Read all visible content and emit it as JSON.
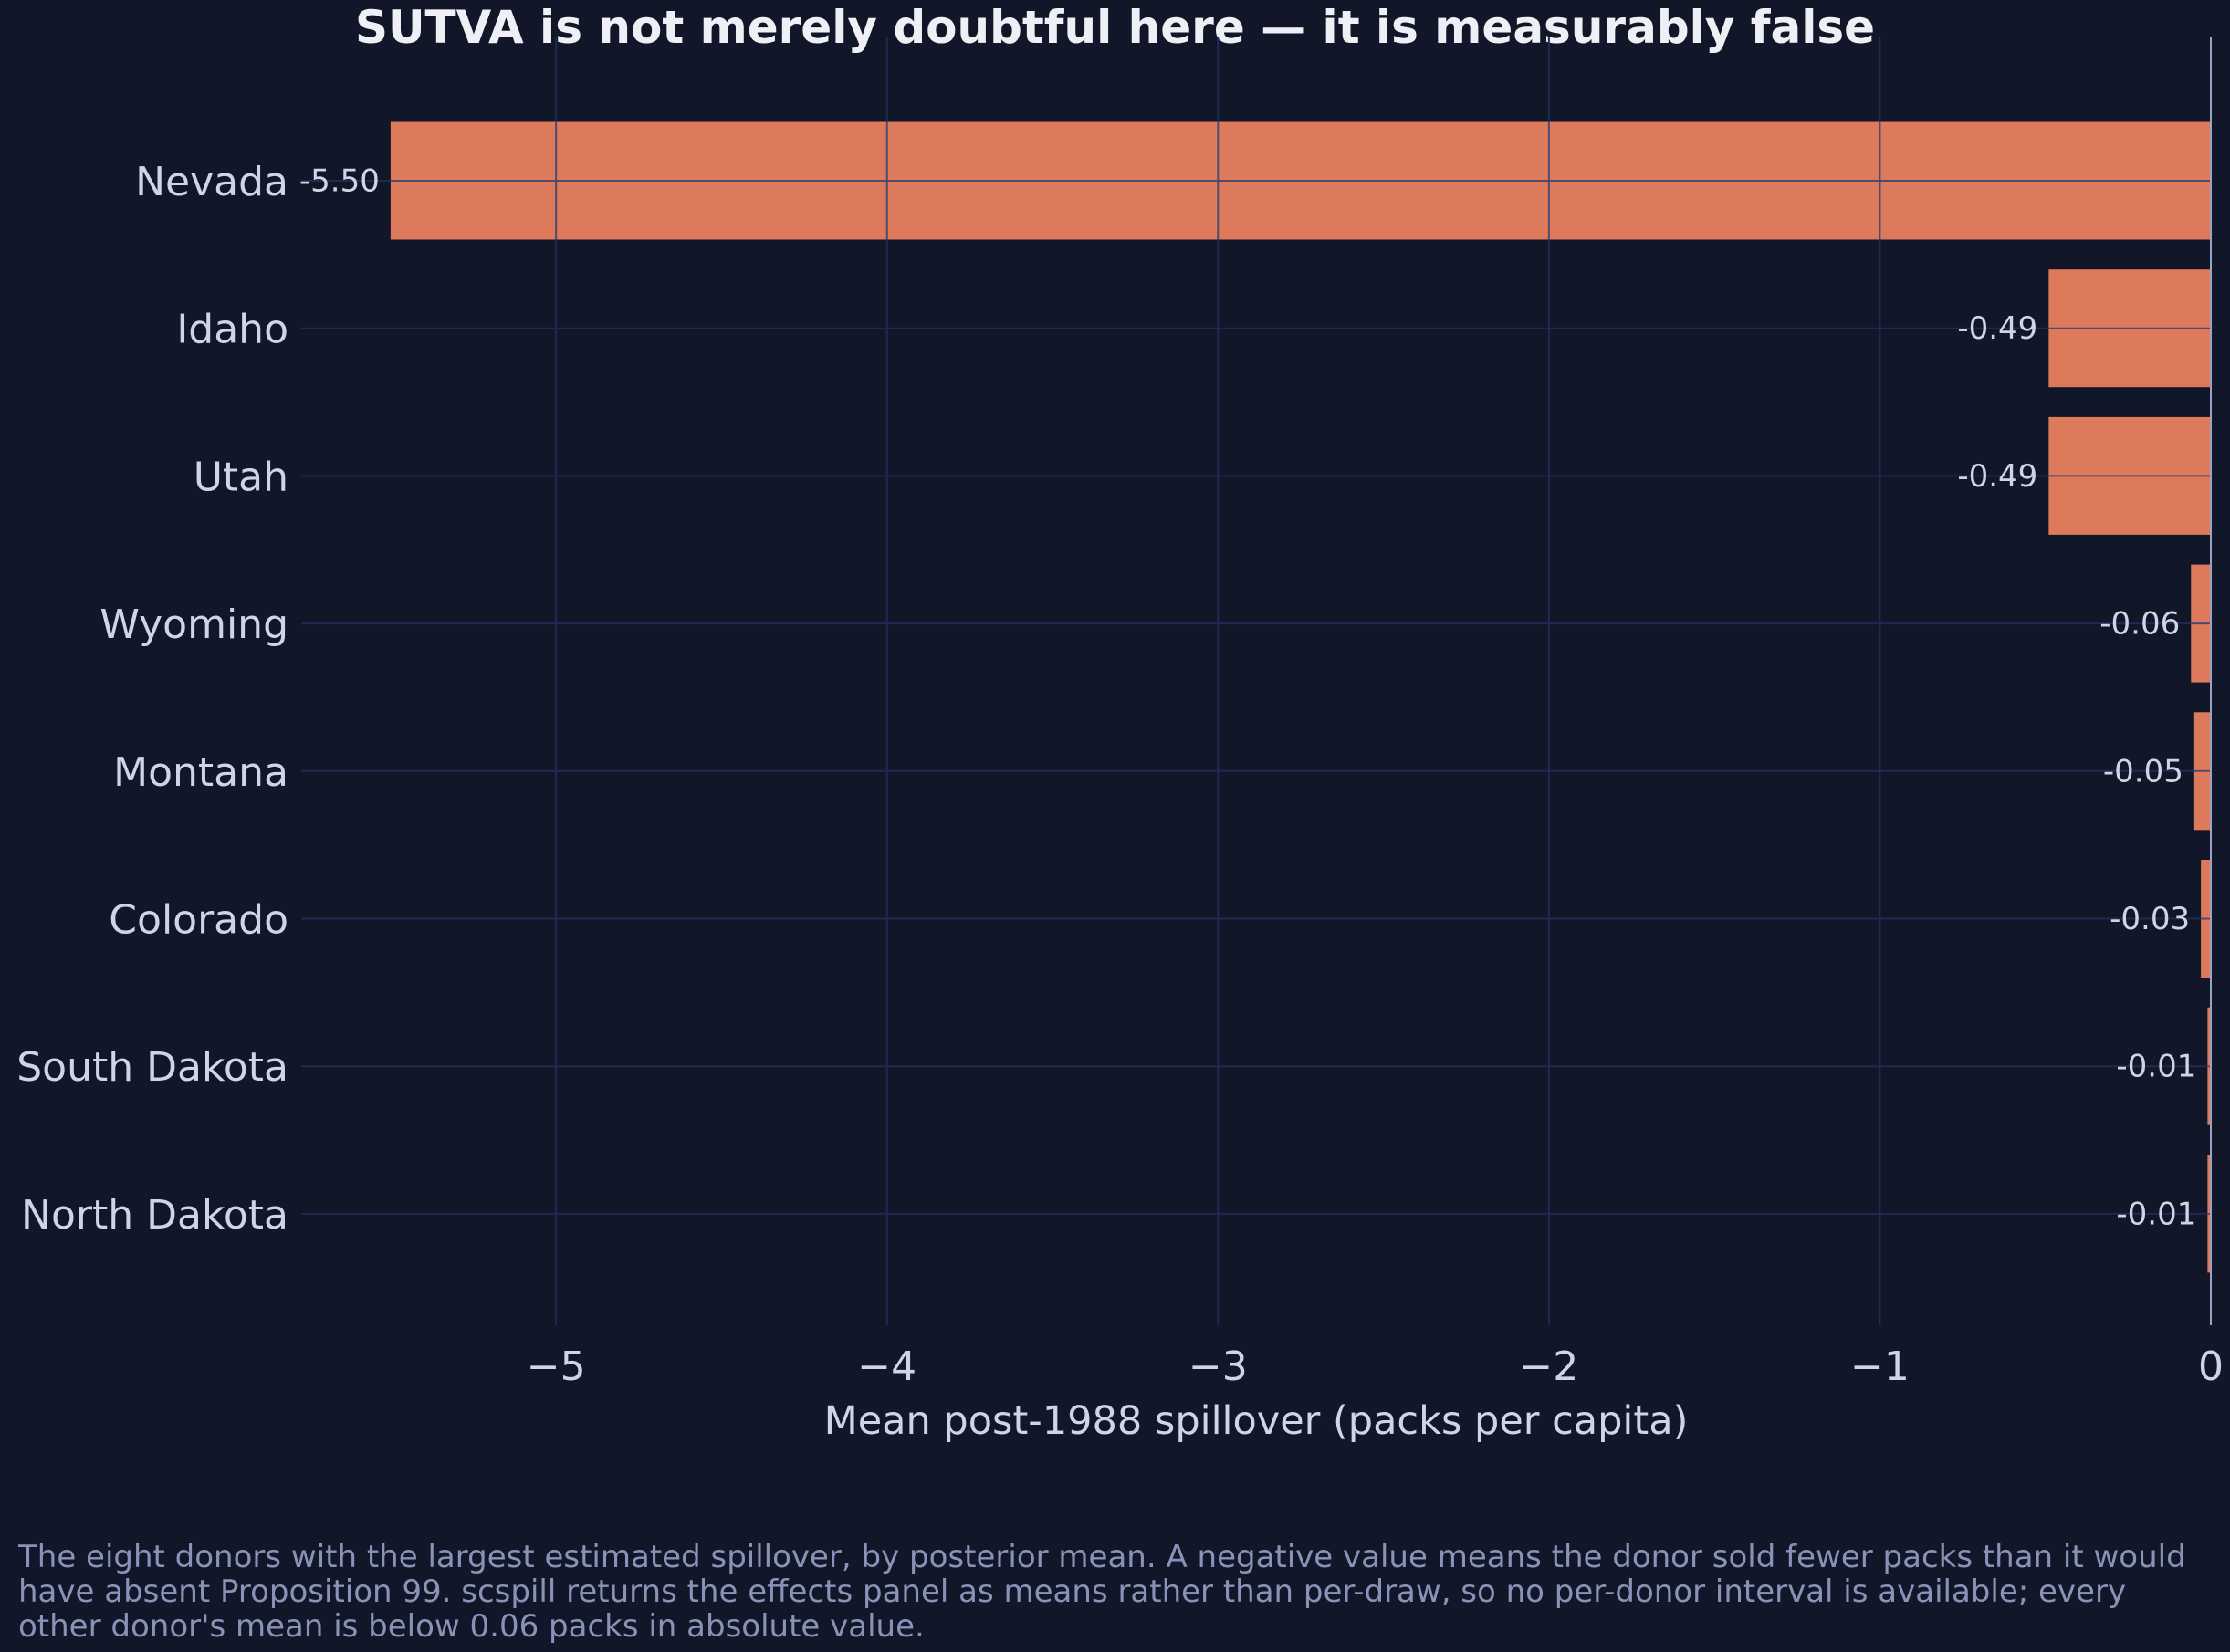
{
  "chart_data": {
    "type": "bar",
    "orientation": "horizontal",
    "title": "SUTVA is not merely doubtful here — it is measurably false",
    "xlabel": "Mean post-1988 spillover (packs per capita)",
    "ylabel": "",
    "xlim": [
      -5.77,
      0
    ],
    "xticks": [
      -5,
      -4,
      -3,
      -2,
      -1,
      0
    ],
    "xtick_labels": [
      "−5",
      "−4",
      "−3",
      "−2",
      "−1",
      "0"
    ],
    "grid": true,
    "categories": [
      "Nevada",
      "Idaho",
      "Utah",
      "Wyoming",
      "Montana",
      "Colorado",
      "South Dakota",
      "North Dakota"
    ],
    "values": [
      -5.5,
      -0.49,
      -0.49,
      -0.06,
      -0.05,
      -0.03,
      -0.01,
      -0.01
    ],
    "value_labels": [
      "-5.50",
      "-0.49",
      "-0.49",
      "-0.06",
      "-0.05",
      "-0.03",
      "-0.01",
      "-0.01"
    ],
    "bar_color": "#dd7a5c",
    "caption": "The eight donors with the largest estimated spillover, by posterior mean. A negative value means the donor sold fewer packs than it would have absent Proposition 99. scspill returns the effects panel as means rather than per-draw, so no per-donor interval is available; every other donor's mean is below 0.06 packs in absolute value."
  }
}
